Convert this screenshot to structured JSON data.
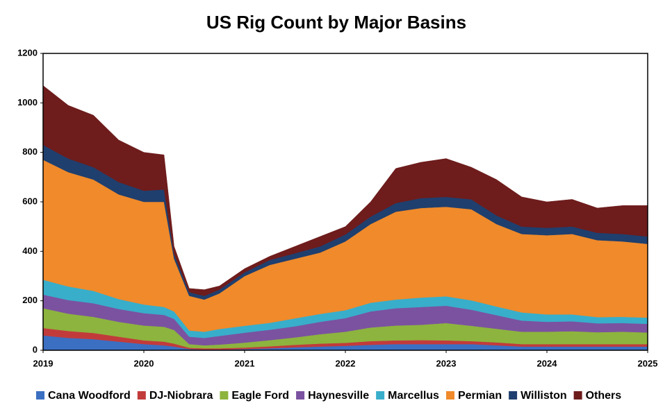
{
  "chart_data": {
    "type": "stacked_area",
    "title": "US Rig Count by Major Basins",
    "x": [
      2019,
      2019.25,
      2019.5,
      2019.75,
      2020,
      2020.2,
      2020.3,
      2020.45,
      2020.6,
      2020.75,
      2021,
      2021.25,
      2021.5,
      2021.75,
      2022,
      2022.25,
      2022.5,
      2022.75,
      2023,
      2023.25,
      2023.5,
      2023.75,
      2024,
      2024.25,
      2024.5,
      2024.75,
      2025
    ],
    "xlim": [
      2019,
      2025
    ],
    "xticks": [
      2019,
      2020,
      2021,
      2022,
      2023,
      2024,
      2025
    ],
    "ylim": [
      0,
      1200
    ],
    "yticks": [
      0,
      200,
      400,
      600,
      800,
      1000,
      1200
    ],
    "series": [
      {
        "name": "Cana Woodford",
        "color": "#3b6fc2",
        "values": [
          60,
          50,
          45,
          35,
          25,
          20,
          15,
          5,
          3,
          3,
          5,
          8,
          12,
          15,
          18,
          22,
          25,
          25,
          25,
          25,
          20,
          15,
          15,
          15,
          15,
          15,
          15
        ]
      },
      {
        "name": "DJ-Niobrara",
        "color": "#c23b3b",
        "values": [
          30,
          28,
          25,
          20,
          15,
          15,
          12,
          5,
          5,
          5,
          6,
          8,
          10,
          12,
          12,
          15,
          15,
          16,
          15,
          12,
          12,
          10,
          10,
          10,
          10,
          10,
          10
        ]
      },
      {
        "name": "Eagle Ford",
        "color": "#8db43e",
        "values": [
          80,
          70,
          65,
          60,
          60,
          60,
          55,
          15,
          12,
          15,
          20,
          25,
          30,
          38,
          45,
          55,
          60,
          62,
          70,
          62,
          55,
          50,
          50,
          52,
          48,
          50,
          47
        ]
      },
      {
        "name": "Haynesville",
        "color": "#7b52a0",
        "values": [
          55,
          55,
          55,
          52,
          50,
          48,
          45,
          30,
          30,
          35,
          40,
          42,
          45,
          50,
          55,
          65,
          70,
          72,
          70,
          65,
          55,
          45,
          40,
          40,
          36,
          35,
          35
        ]
      },
      {
        "name": "Marcellus",
        "color": "#38aecb",
        "values": [
          60,
          55,
          50,
          40,
          35,
          32,
          30,
          25,
          25,
          28,
          28,
          28,
          32,
          32,
          32,
          35,
          35,
          38,
          38,
          38,
          35,
          33,
          30,
          28,
          25,
          25,
          25
        ]
      },
      {
        "name": "Permian",
        "color": "#f08a2a",
        "values": [
          485,
          462,
          450,
          423,
          415,
          425,
          213,
          140,
          130,
          144,
          201,
          234,
          241,
          248,
          278,
          318,
          355,
          362,
          362,
          368,
          333,
          317,
          320,
          325,
          311,
          305,
          298
        ]
      },
      {
        "name": "Williston",
        "color": "#1f3f6e",
        "values": [
          60,
          55,
          50,
          50,
          45,
          50,
          20,
          15,
          15,
          15,
          15,
          20,
          22,
          25,
          28,
          30,
          35,
          40,
          40,
          40,
          35,
          30,
          30,
          30,
          30,
          30,
          30
        ]
      },
      {
        "name": "Others",
        "color": "#6e1c1c",
        "values": [
          240,
          215,
          210,
          170,
          155,
          140,
          30,
          15,
          25,
          15,
          15,
          15,
          28,
          40,
          32,
          60,
          140,
          145,
          155,
          130,
          145,
          120,
          105,
          110,
          100,
          115,
          125
        ]
      }
    ]
  }
}
